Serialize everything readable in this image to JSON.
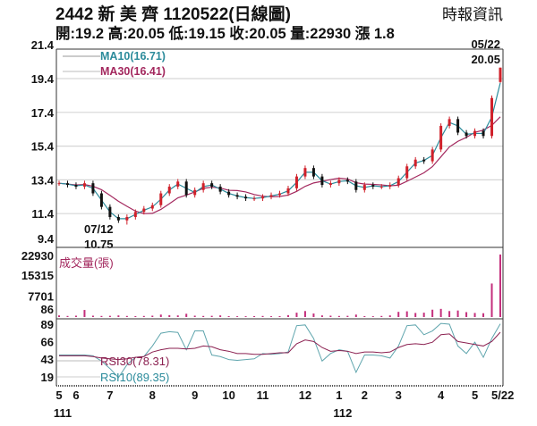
{
  "header": {
    "title": "2442  新 美 齊 1120522(日線圖)",
    "source": "時報資訊",
    "quote": "開:19.2 高:20.05 低:19.15 收:20.05 量:22930 漲 1.8"
  },
  "colors": {
    "up": "#d0202a",
    "down": "#111111",
    "ma10": "#2b8b9b",
    "ma30": "#a3285e",
    "volume": "#c42f7c",
    "rsi10": "#5fa5ad",
    "rsi30": "#8b2050"
  },
  "chart_data": [
    {
      "type": "candlestick",
      "panel": "price",
      "yticks": [
        "21.4",
        "19.4",
        "17.4",
        "15.4",
        "13.4",
        "11.4",
        "9.4"
      ],
      "ylim": [
        9.4,
        21.4
      ],
      "grid": true,
      "legend": [
        {
          "name": "MA10(16.71)",
          "color": "#2b8b9b"
        },
        {
          "name": "MA30(16.41)",
          "color": "#a3285e"
        }
      ],
      "annotations": {
        "low_date": "07/12",
        "low_value": "10.75",
        "last_date": "05/22",
        "last_value": "20.05"
      },
      "dates": [
        "2022-05-20",
        "2022-05-27",
        "2022-06-02",
        "2022-06-10",
        "2022-06-17",
        "2022-06-24",
        "2022-07-01",
        "2022-07-08",
        "2022-07-15",
        "2022-07-22",
        "2022-07-29",
        "2022-08-05",
        "2022-08-12",
        "2022-08-19",
        "2022-08-26",
        "2022-09-02",
        "2022-09-08",
        "2022-09-16",
        "2022-09-23",
        "2022-09-30",
        "2022-10-07",
        "2022-10-14",
        "2022-10-21",
        "2022-10-28",
        "2022-11-04",
        "2022-11-11",
        "2022-11-18",
        "2022-11-25",
        "2022-12-02",
        "2022-12-09",
        "2022-12-16",
        "2022-12-23",
        "2022-12-30",
        "2023-01-06",
        "2023-01-13",
        "2023-01-17",
        "2023-02-03",
        "2023-02-10",
        "2023-02-17",
        "2023-02-24",
        "2023-03-03",
        "2023-03-10",
        "2023-03-17",
        "2023-03-24",
        "2023-03-31",
        "2023-04-07",
        "2023-04-14",
        "2023-04-21",
        "2023-04-28",
        "2023-05-05",
        "2023-05-12",
        "2023-05-19",
        "2023-05-22"
      ],
      "close": [
        13.2,
        13.1,
        13.0,
        13.2,
        12.6,
        11.8,
        11.2,
        11.0,
        11.2,
        11.5,
        11.7,
        11.9,
        12.6,
        13.0,
        13.3,
        12.5,
        12.8,
        13.2,
        13.0,
        12.7,
        12.5,
        12.4,
        12.3,
        12.3,
        12.4,
        12.5,
        12.6,
        12.9,
        13.6,
        14.1,
        13.6,
        13.1,
        13.2,
        13.4,
        13.3,
        12.8,
        13.1,
        13.0,
        13.0,
        13.1,
        13.5,
        14.2,
        14.6,
        14.5,
        15.2,
        16.6,
        17.0,
        16.2,
        16.0,
        16.3,
        16.0,
        18.25,
        20.05
      ],
      "low": [
        null,
        null,
        null,
        null,
        null,
        null,
        null,
        null,
        10.75,
        null,
        null,
        null,
        null,
        null,
        null,
        null,
        null,
        null,
        null,
        null,
        null,
        null,
        null,
        null,
        null,
        null,
        null,
        null,
        null,
        null,
        null,
        null,
        null,
        null,
        null,
        null,
        null,
        null,
        null,
        null,
        null,
        null,
        null,
        null,
        null,
        null,
        null,
        null,
        null,
        null,
        null,
        null,
        19.15
      ],
      "last_open": 19.2,
      "last_high": 20.05
    },
    {
      "type": "bar",
      "panel": "volume",
      "label": "成交量(張)",
      "yticks": [
        "22930",
        "15315",
        "7701",
        "86"
      ],
      "ylim": [
        0,
        22930
      ],
      "values": [
        600,
        400,
        500,
        2600,
        500,
        400,
        450,
        600,
        400,
        350,
        400,
        500,
        900,
        700,
        600,
        1200,
        500,
        400,
        450,
        600,
        350,
        300,
        300,
        350,
        400,
        300,
        350,
        700,
        1600,
        2200,
        1300,
        600,
        500,
        400,
        450,
        900,
        350,
        300,
        400,
        600,
        1900,
        2100,
        1500,
        1600,
        2700,
        3000,
        2200,
        2400,
        1800,
        1500,
        1400,
        12300,
        22930
      ]
    },
    {
      "type": "line",
      "panel": "rsi",
      "yticks": [
        "89",
        "66",
        "43",
        "19"
      ],
      "ylim": [
        0,
        100
      ],
      "series": [
        {
          "name": "RSI30(78.31)",
          "color": "#8b2050",
          "values": [
            47,
            47,
            47,
            47,
            46,
            44,
            43,
            42,
            43,
            45,
            46,
            52,
            55,
            57,
            57,
            56,
            57,
            60,
            59,
            55,
            53,
            50,
            50,
            49,
            49,
            50,
            51,
            51,
            63,
            68,
            66,
            58,
            53,
            54,
            53,
            50,
            52,
            52,
            51,
            52,
            58,
            62,
            63,
            62,
            65,
            75,
            76,
            66,
            64,
            62,
            60,
            66,
            78.31
          ]
        },
        {
          "name": "RSI10(89.35)",
          "color": "#5fa5ad",
          "values": [
            48,
            48,
            48,
            48,
            47,
            40,
            30,
            18,
            35,
            45,
            46,
            60,
            77,
            79,
            78,
            55,
            80,
            80,
            48,
            46,
            42,
            41,
            42,
            43,
            50,
            49,
            50,
            52,
            87,
            88,
            70,
            40,
            50,
            55,
            53,
            25,
            48,
            48,
            47,
            44,
            60,
            87,
            88,
            75,
            80,
            90,
            89,
            60,
            50,
            65,
            45,
            70,
            89.35
          ]
        }
      ]
    }
  ],
  "xaxis": {
    "ticks": [
      {
        "date": "2022-05-20",
        "label": "5"
      },
      {
        "date": "2022-06-02",
        "label": "6"
      },
      {
        "date": "2022-07-01",
        "label": "7"
      },
      {
        "date": "2022-08-05",
        "label": "8"
      },
      {
        "date": "2022-09-08",
        "label": "9"
      },
      {
        "date": "2022-10-07",
        "label": "10"
      },
      {
        "date": "2022-11-04",
        "label": "11"
      },
      {
        "date": "2022-12-09",
        "label": "12"
      },
      {
        "date": "2023-01-06",
        "label": "1"
      },
      {
        "date": "2023-02-03",
        "label": "2"
      },
      {
        "date": "2023-03-03",
        "label": "3"
      },
      {
        "date": "2023-04-07",
        "label": "4"
      },
      {
        "date": "2023-05-05",
        "label": "5"
      },
      {
        "date": "2023-05-22",
        "label": "5/22"
      }
    ],
    "years": [
      {
        "date": "2022-05-20",
        "label": "111"
      },
      {
        "date": "2023-01-06",
        "label": "112"
      }
    ]
  }
}
